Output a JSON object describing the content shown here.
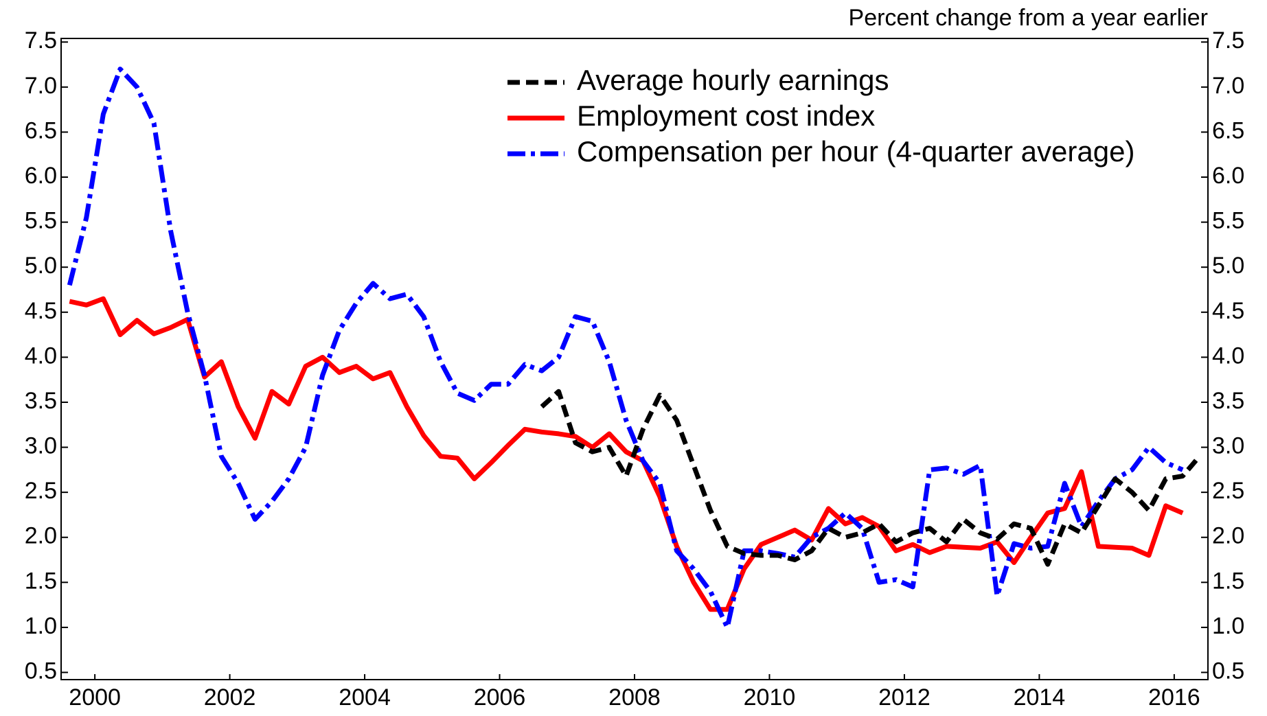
{
  "chart_data": {
    "type": "line",
    "y_axis_label": "Percent change from a year earlier",
    "x": [
      2000.125,
      2000.375,
      2000.625,
      2000.875,
      2001.125,
      2001.375,
      2001.625,
      2001.875,
      2002.125,
      2002.375,
      2002.625,
      2002.875,
      2003.125,
      2003.375,
      2003.625,
      2003.875,
      2004.125,
      2004.375,
      2004.625,
      2004.875,
      2005.125,
      2005.375,
      2005.625,
      2005.875,
      2006.125,
      2006.375,
      2006.625,
      2006.875,
      2007.125,
      2007.375,
      2007.625,
      2007.875,
      2008.125,
      2008.375,
      2008.625,
      2008.875,
      2009.125,
      2009.375,
      2009.625,
      2009.875,
      2010.125,
      2010.375,
      2010.625,
      2010.875,
      2011.125,
      2011.375,
      2011.625,
      2011.875,
      2012.125,
      2012.375,
      2012.625,
      2012.875,
      2013.125,
      2013.375,
      2013.625,
      2013.875,
      2014.125,
      2014.375,
      2014.625,
      2014.875,
      2015.125,
      2015.375,
      2015.625,
      2015.875,
      2016.125,
      2016.375,
      2016.625,
      2016.875
    ],
    "series": [
      {
        "name": "Average hourly earnings",
        "color": "#000000",
        "dash": "dash",
        "values": [
          null,
          null,
          null,
          null,
          null,
          null,
          null,
          null,
          null,
          null,
          null,
          null,
          null,
          null,
          null,
          null,
          null,
          null,
          null,
          null,
          null,
          null,
          null,
          null,
          null,
          null,
          null,
          null,
          3.45,
          3.62,
          3.05,
          2.95,
          3.0,
          2.68,
          3.2,
          3.58,
          3.3,
          2.8,
          2.3,
          1.9,
          1.82,
          1.8,
          1.8,
          1.75,
          1.85,
          2.1,
          2.0,
          2.05,
          2.15,
          1.95,
          2.05,
          2.1,
          1.95,
          2.2,
          2.05,
          1.98,
          2.15,
          2.1,
          1.7,
          2.15,
          2.05,
          2.35,
          2.65,
          2.5,
          2.3,
          2.65,
          2.68,
          2.9
        ]
      },
      {
        "name": "Employment cost index",
        "color": "#ff0000",
        "dash": "solid",
        "values": [
          4.62,
          4.58,
          4.65,
          4.25,
          4.41,
          4.26,
          4.33,
          4.42,
          3.78,
          3.95,
          3.45,
          3.1,
          3.62,
          3.48,
          3.9,
          4.0,
          3.83,
          3.9,
          3.76,
          3.83,
          3.45,
          3.13,
          2.9,
          2.88,
          2.65,
          2.83,
          3.02,
          3.2,
          3.17,
          3.15,
          3.12,
          3.0,
          3.15,
          2.95,
          2.85,
          2.45,
          1.9,
          1.5,
          1.2,
          1.2,
          1.65,
          1.92,
          2.0,
          2.08,
          1.97,
          2.32,
          2.15,
          2.22,
          2.12,
          1.85,
          1.92,
          1.83,
          1.9,
          1.89,
          1.88,
          1.95,
          1.72,
          2.0,
          2.27,
          2.32,
          2.73,
          1.9,
          1.89,
          1.88,
          1.8,
          2.35,
          2.27,
          null
        ]
      },
      {
        "name": "Compensation per hour (4-quarter average)",
        "color": "#0000ff",
        "dash": "dashdot",
        "values": [
          4.8,
          5.55,
          6.7,
          7.2,
          7.0,
          6.6,
          5.4,
          4.5,
          3.8,
          2.9,
          2.6,
          2.2,
          2.4,
          2.65,
          3.0,
          3.8,
          4.3,
          4.6,
          4.82,
          4.65,
          4.7,
          4.45,
          3.95,
          3.6,
          3.52,
          3.7,
          3.7,
          3.92,
          3.85,
          4.0,
          4.45,
          4.4,
          3.95,
          3.3,
          2.85,
          2.6,
          1.85,
          1.65,
          1.4,
          1.0,
          1.85,
          1.85,
          1.82,
          1.78,
          2.0,
          2.1,
          2.27,
          2.1,
          1.5,
          1.53,
          1.45,
          2.75,
          2.77,
          2.7,
          2.8,
          1.35,
          1.93,
          1.88,
          1.9,
          2.6,
          2.12,
          2.4,
          2.65,
          2.75,
          3.0,
          2.83,
          2.75,
          null
        ]
      }
    ],
    "xlim": [
      2000,
      2017
    ],
    "xticks": [
      {
        "value": 2000.5,
        "label": "2000"
      },
      {
        "value": 2002.5,
        "label": "2002"
      },
      {
        "value": 2004.5,
        "label": "2004"
      },
      {
        "value": 2006.5,
        "label": "2006"
      },
      {
        "value": 2008.5,
        "label": "2008"
      },
      {
        "value": 2010.5,
        "label": "2010"
      },
      {
        "value": 2012.5,
        "label": "2012"
      },
      {
        "value": 2014.5,
        "label": "2014"
      },
      {
        "value": 2016.5,
        "label": "2016"
      }
    ],
    "ylim": [
      0.42,
      7.54
    ],
    "yticks": [
      0.5,
      {
        "value": 1,
        "label": "1.0"
      },
      1.5,
      {
        "value": 2,
        "label": "2.0"
      },
      2.5,
      {
        "value": 3,
        "label": "3.0"
      },
      3.5,
      {
        "value": 4,
        "label": "4.0"
      },
      4.5,
      {
        "value": 5,
        "label": "5.0"
      },
      5.5,
      {
        "value": 6,
        "label": "6.0"
      },
      6.5,
      {
        "value": 7,
        "label": "7.0"
      },
      7.5
    ],
    "right_axis_mirror": true,
    "grid": false,
    "legend": "top"
  }
}
